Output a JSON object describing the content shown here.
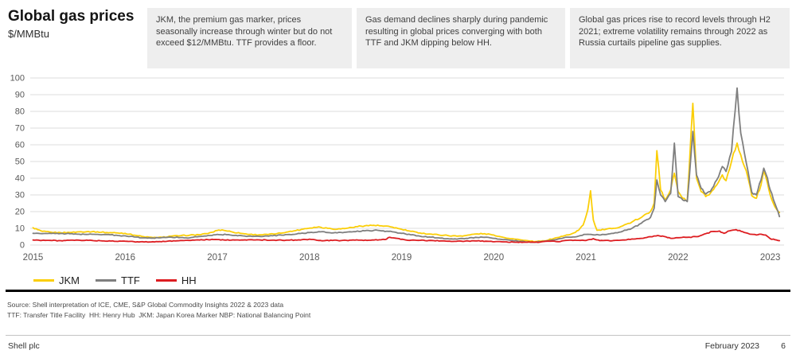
{
  "header": {
    "title": "Global gas prices",
    "subtitle": "$/MMBtu"
  },
  "annotations": [
    {
      "text": "JKM, the premium gas marker, prices seasonally increase through winter but do not exceed $12/MMBtu. TTF provides a floor."
    },
    {
      "text": "Gas demand declines sharply during pandemic resulting in global prices converging with both TTF and JKM dipping below HH."
    },
    {
      "text": "Global gas prices rise to record levels through H2 2021; extreme volatility remains through 2022 as Russia curtails pipeline gas supplies."
    }
  ],
  "chart_data": {
    "type": "line",
    "title": "Global gas prices",
    "ylabel": "$/MMBtu",
    "xlabel": "",
    "grid": true,
    "legend_position": "bottom-left",
    "ylim": [
      0,
      100
    ],
    "xlim": [
      2014.97,
      2023.15
    ],
    "y_ticks": [
      0,
      10,
      20,
      30,
      40,
      50,
      60,
      70,
      80,
      90,
      100
    ],
    "x_ticks": [
      "2015",
      "2016",
      "2017",
      "2018",
      "2019",
      "2020",
      "2021",
      "2022",
      "2023"
    ],
    "series": [
      {
        "name": "JKM",
        "color": "#FBCE07",
        "points": [
          [
            2015.0,
            10.4
          ],
          [
            2015.05,
            9.2
          ],
          [
            2015.1,
            8.2
          ],
          [
            2015.2,
            7.6
          ],
          [
            2015.3,
            7.4
          ],
          [
            2015.4,
            7.5
          ],
          [
            2015.5,
            7.9
          ],
          [
            2015.6,
            8.1
          ],
          [
            2015.7,
            7.9
          ],
          [
            2015.8,
            7.5
          ],
          [
            2015.9,
            7.3
          ],
          [
            2016.0,
            7.0
          ],
          [
            2016.1,
            5.9
          ],
          [
            2016.2,
            5.0
          ],
          [
            2016.3,
            4.5
          ],
          [
            2016.4,
            4.6
          ],
          [
            2016.5,
            5.3
          ],
          [
            2016.6,
            5.6
          ],
          [
            2016.7,
            5.9
          ],
          [
            2016.8,
            6.2
          ],
          [
            2016.9,
            6.9
          ],
          [
            2017.0,
            8.7
          ],
          [
            2017.05,
            9.1
          ],
          [
            2017.15,
            8.0
          ],
          [
            2017.25,
            7.0
          ],
          [
            2017.35,
            6.4
          ],
          [
            2017.45,
            6.1
          ],
          [
            2017.55,
            6.3
          ],
          [
            2017.65,
            6.9
          ],
          [
            2017.75,
            7.7
          ],
          [
            2017.85,
            8.6
          ],
          [
            2017.95,
            9.8
          ],
          [
            2018.05,
            10.6
          ],
          [
            2018.1,
            10.9
          ],
          [
            2018.2,
            10.0
          ],
          [
            2018.3,
            9.5
          ],
          [
            2018.4,
            10.0
          ],
          [
            2018.5,
            11.0
          ],
          [
            2018.6,
            11.5
          ],
          [
            2018.7,
            11.8
          ],
          [
            2018.8,
            11.3
          ],
          [
            2018.9,
            10.7
          ],
          [
            2019.0,
            9.4
          ],
          [
            2019.1,
            8.2
          ],
          [
            2019.2,
            7.2
          ],
          [
            2019.3,
            6.6
          ],
          [
            2019.4,
            6.1
          ],
          [
            2019.5,
            5.7
          ],
          [
            2019.6,
            5.3
          ],
          [
            2019.7,
            5.7
          ],
          [
            2019.8,
            6.6
          ],
          [
            2019.9,
            6.8
          ],
          [
            2020.0,
            6.0
          ],
          [
            2020.1,
            4.6
          ],
          [
            2020.2,
            3.8
          ],
          [
            2020.3,
            3.0
          ],
          [
            2020.4,
            2.3
          ],
          [
            2020.45,
            2.1
          ],
          [
            2020.55,
            2.5
          ],
          [
            2020.65,
            3.9
          ],
          [
            2020.75,
            5.3
          ],
          [
            2020.85,
            6.8
          ],
          [
            2020.92,
            8.8
          ],
          [
            2020.97,
            12.0
          ],
          [
            2021.02,
            21.0
          ],
          [
            2021.05,
            32.5
          ],
          [
            2021.08,
            15.0
          ],
          [
            2021.12,
            8.8
          ],
          [
            2021.2,
            9.2
          ],
          [
            2021.3,
            10.0
          ],
          [
            2021.4,
            11.5
          ],
          [
            2021.5,
            13.8
          ],
          [
            2021.6,
            16.5
          ],
          [
            2021.7,
            20.0
          ],
          [
            2021.74,
            25.0
          ],
          [
            2021.77,
            56.5
          ],
          [
            2021.81,
            33.0
          ],
          [
            2021.86,
            27.0
          ],
          [
            2021.92,
            33.0
          ],
          [
            2021.96,
            43.0
          ],
          [
            2022.0,
            32.0
          ],
          [
            2022.05,
            28.0
          ],
          [
            2022.1,
            26.5
          ],
          [
            2022.16,
            84.8
          ],
          [
            2022.2,
            40.0
          ],
          [
            2022.25,
            32.0
          ],
          [
            2022.3,
            29.0
          ],
          [
            2022.35,
            31.0
          ],
          [
            2022.42,
            36.0
          ],
          [
            2022.48,
            42.0
          ],
          [
            2022.52,
            38.5
          ],
          [
            2022.58,
            50.0
          ],
          [
            2022.64,
            61.0
          ],
          [
            2022.68,
            54.0
          ],
          [
            2022.72,
            47.0
          ],
          [
            2022.76,
            40.0
          ],
          [
            2022.8,
            29.5
          ],
          [
            2022.85,
            28.0
          ],
          [
            2022.9,
            36.0
          ],
          [
            2022.93,
            44.5
          ],
          [
            2022.97,
            37.0
          ],
          [
            2023.0,
            30.0
          ],
          [
            2023.05,
            23.0
          ],
          [
            2023.1,
            19.5
          ]
        ]
      },
      {
        "name": "TTF",
        "color": "#7F7F7F",
        "points": [
          [
            2015.0,
            7.0
          ],
          [
            2015.1,
            6.8
          ],
          [
            2015.2,
            6.9
          ],
          [
            2015.3,
            6.9
          ],
          [
            2015.4,
            6.7
          ],
          [
            2015.5,
            6.5
          ],
          [
            2015.6,
            6.4
          ],
          [
            2015.7,
            6.4
          ],
          [
            2015.8,
            6.3
          ],
          [
            2015.9,
            5.9
          ],
          [
            2016.0,
            5.5
          ],
          [
            2016.1,
            4.8
          ],
          [
            2016.2,
            4.3
          ],
          [
            2016.3,
            4.2
          ],
          [
            2016.4,
            4.5
          ],
          [
            2016.5,
            4.7
          ],
          [
            2016.6,
            4.5
          ],
          [
            2016.7,
            4.3
          ],
          [
            2016.8,
            5.1
          ],
          [
            2016.9,
            5.7
          ],
          [
            2017.0,
            6.4
          ],
          [
            2017.1,
            6.2
          ],
          [
            2017.2,
            5.8
          ],
          [
            2017.3,
            5.4
          ],
          [
            2017.4,
            5.2
          ],
          [
            2017.5,
            5.2
          ],
          [
            2017.6,
            5.5
          ],
          [
            2017.7,
            5.9
          ],
          [
            2017.8,
            6.2
          ],
          [
            2017.9,
            6.9
          ],
          [
            2018.0,
            7.5
          ],
          [
            2018.1,
            8.0
          ],
          [
            2018.2,
            7.5
          ],
          [
            2018.3,
            7.3
          ],
          [
            2018.4,
            7.7
          ],
          [
            2018.5,
            8.0
          ],
          [
            2018.6,
            8.5
          ],
          [
            2018.7,
            8.8
          ],
          [
            2018.8,
            8.5
          ],
          [
            2018.9,
            7.9
          ],
          [
            2019.0,
            7.0
          ],
          [
            2019.1,
            6.1
          ],
          [
            2019.2,
            5.3
          ],
          [
            2019.3,
            4.8
          ],
          [
            2019.4,
            4.3
          ],
          [
            2019.5,
            3.8
          ],
          [
            2019.6,
            3.5
          ],
          [
            2019.7,
            4.0
          ],
          [
            2019.8,
            4.6
          ],
          [
            2019.9,
            4.6
          ],
          [
            2020.0,
            4.0
          ],
          [
            2020.1,
            3.2
          ],
          [
            2020.2,
            2.8
          ],
          [
            2020.3,
            2.2
          ],
          [
            2020.4,
            1.6
          ],
          [
            2020.5,
            1.9
          ],
          [
            2020.6,
            2.6
          ],
          [
            2020.7,
            3.6
          ],
          [
            2020.8,
            4.7
          ],
          [
            2020.9,
            5.0
          ],
          [
            2021.0,
            6.4
          ],
          [
            2021.1,
            6.0
          ],
          [
            2021.2,
            6.3
          ],
          [
            2021.3,
            7.0
          ],
          [
            2021.4,
            8.3
          ],
          [
            2021.5,
            10.0
          ],
          [
            2021.6,
            13.0
          ],
          [
            2021.7,
            16.5
          ],
          [
            2021.74,
            22.0
          ],
          [
            2021.77,
            39.0
          ],
          [
            2021.81,
            30.0
          ],
          [
            2021.86,
            26.0
          ],
          [
            2021.92,
            31.0
          ],
          [
            2021.96,
            61.0
          ],
          [
            2022.0,
            29.0
          ],
          [
            2022.05,
            27.0
          ],
          [
            2022.1,
            26.0
          ],
          [
            2022.16,
            68.0
          ],
          [
            2022.2,
            42.0
          ],
          [
            2022.25,
            34.0
          ],
          [
            2022.3,
            30.5
          ],
          [
            2022.35,
            32.0
          ],
          [
            2022.42,
            39.0
          ],
          [
            2022.48,
            47.0
          ],
          [
            2022.52,
            44.0
          ],
          [
            2022.58,
            56.0
          ],
          [
            2022.64,
            94.0
          ],
          [
            2022.68,
            67.0
          ],
          [
            2022.72,
            55.0
          ],
          [
            2022.76,
            44.0
          ],
          [
            2022.8,
            31.5
          ],
          [
            2022.85,
            30.0
          ],
          [
            2022.9,
            39.0
          ],
          [
            2022.93,
            46.0
          ],
          [
            2022.97,
            40.0
          ],
          [
            2023.0,
            33.0
          ],
          [
            2023.05,
            25.0
          ],
          [
            2023.1,
            17.0
          ]
        ]
      },
      {
        "name": "HH",
        "color": "#DD1D21",
        "points": [
          [
            2015.0,
            3.0
          ],
          [
            2015.15,
            2.8
          ],
          [
            2015.3,
            2.6
          ],
          [
            2015.45,
            2.8
          ],
          [
            2015.6,
            2.8
          ],
          [
            2015.75,
            2.5
          ],
          [
            2015.9,
            2.2
          ],
          [
            2016.0,
            2.3
          ],
          [
            2016.15,
            1.8
          ],
          [
            2016.3,
            2.0
          ],
          [
            2016.45,
            2.2
          ],
          [
            2016.6,
            2.7
          ],
          [
            2016.75,
            2.9
          ],
          [
            2016.9,
            3.2
          ],
          [
            2017.0,
            3.3
          ],
          [
            2017.15,
            2.9
          ],
          [
            2017.3,
            3.1
          ],
          [
            2017.45,
            3.1
          ],
          [
            2017.6,
            2.9
          ],
          [
            2017.75,
            2.9
          ],
          [
            2017.9,
            3.0
          ],
          [
            2018.0,
            3.5
          ],
          [
            2018.1,
            2.7
          ],
          [
            2018.25,
            2.7
          ],
          [
            2018.4,
            2.8
          ],
          [
            2018.55,
            2.9
          ],
          [
            2018.7,
            3.0
          ],
          [
            2018.82,
            3.3
          ],
          [
            2018.87,
            4.6
          ],
          [
            2018.95,
            4.0
          ],
          [
            2019.05,
            3.0
          ],
          [
            2019.2,
            2.8
          ],
          [
            2019.35,
            2.6
          ],
          [
            2019.5,
            2.3
          ],
          [
            2019.65,
            2.3
          ],
          [
            2019.8,
            2.5
          ],
          [
            2019.95,
            2.2
          ],
          [
            2020.1,
            1.9
          ],
          [
            2020.25,
            1.7
          ],
          [
            2020.4,
            1.7
          ],
          [
            2020.5,
            1.7
          ],
          [
            2020.6,
            2.3
          ],
          [
            2020.7,
            2.0
          ],
          [
            2020.8,
            2.8
          ],
          [
            2020.9,
            2.8
          ],
          [
            2021.0,
            2.7
          ],
          [
            2021.08,
            3.8
          ],
          [
            2021.15,
            2.6
          ],
          [
            2021.3,
            2.7
          ],
          [
            2021.4,
            3.0
          ],
          [
            2021.5,
            3.6
          ],
          [
            2021.6,
            4.0
          ],
          [
            2021.7,
            5.0
          ],
          [
            2021.78,
            5.7
          ],
          [
            2021.85,
            5.1
          ],
          [
            2021.92,
            4.0
          ],
          [
            2022.0,
            4.4
          ],
          [
            2022.1,
            4.6
          ],
          [
            2022.2,
            5.0
          ],
          [
            2022.3,
            6.8
          ],
          [
            2022.37,
            8.1
          ],
          [
            2022.45,
            8.4
          ],
          [
            2022.5,
            7.0
          ],
          [
            2022.56,
            8.5
          ],
          [
            2022.63,
            9.2
          ],
          [
            2022.7,
            8.0
          ],
          [
            2022.78,
            6.5
          ],
          [
            2022.85,
            6.0
          ],
          [
            2022.9,
            6.5
          ],
          [
            2022.95,
            6.0
          ],
          [
            2023.0,
            3.8
          ],
          [
            2023.05,
            3.2
          ],
          [
            2023.1,
            2.6
          ]
        ]
      }
    ]
  },
  "source": {
    "line1": "Source: Shell interpretation of ICE, CME, S&P Global Commodity Insights 2022 & 2023 data",
    "line2": "TTF: Transfer Title Facility  HH: Henry Hub  JKM: Japan Korea Marker NBP: National Balancing Point"
  },
  "footer": {
    "company": "Shell plc",
    "date": "February 2023",
    "page": "6"
  }
}
